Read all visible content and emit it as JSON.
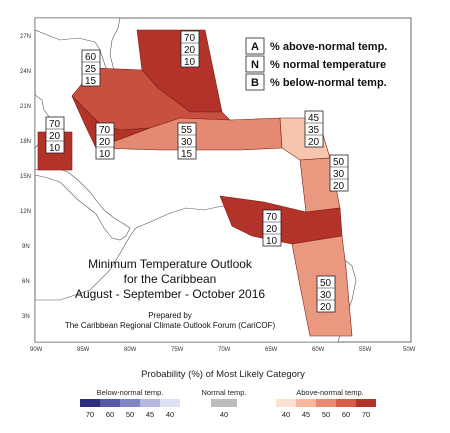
{
  "map": {
    "lat_labels": [
      "27N",
      "24N",
      "21N",
      "18N",
      "15N",
      "12N",
      "9N",
      "6N",
      "3N"
    ],
    "lon_labels": [
      "90W",
      "85W",
      "80W",
      "75W",
      "70W",
      "65W",
      "60W",
      "55W",
      "50W"
    ]
  },
  "key": {
    "rows": [
      {
        "letter": "A",
        "text": "% above-normal temp."
      },
      {
        "letter": "N",
        "text": "% normal temperature"
      },
      {
        "letter": "B",
        "text": "% below-normal temp."
      }
    ]
  },
  "regions": [
    {
      "id": "belize",
      "probs": [
        "70",
        "20",
        "10"
      ]
    },
    {
      "id": "cuba",
      "probs": [
        "60",
        "25",
        "15"
      ]
    },
    {
      "id": "bahamas",
      "probs": [
        "70",
        "20",
        "10"
      ]
    },
    {
      "id": "jamaica",
      "probs": [
        "70",
        "20",
        "10"
      ]
    },
    {
      "id": "hispaniola",
      "probs": [
        "55",
        "30",
        "15"
      ]
    },
    {
      "id": "leeward",
      "probs": [
        "45",
        "35",
        "20"
      ]
    },
    {
      "id": "windward",
      "probs": [
        "50",
        "30",
        "20"
      ]
    },
    {
      "id": "abc-islands",
      "probs": [
        "70",
        "20",
        "10"
      ]
    },
    {
      "id": "guianas",
      "probs": [
        "50",
        "30",
        "20"
      ]
    }
  ],
  "title": {
    "line1": "Minimum Temperature Outlook",
    "line2": "for the Caribbean",
    "line3": "August - September - October 2016"
  },
  "credit": {
    "line1": "Prepared by",
    "line2": "The Caribbean Regional Climate Outlook Forum (CariCOF)"
  },
  "colorbar": {
    "caption": "Probability (%) of Most Likely Category",
    "below": {
      "label": "Below-normal temp.",
      "ticks": [
        "70",
        "60",
        "50",
        "45",
        "40"
      ],
      "colors": [
        "#2b2f7e",
        "#5559a6",
        "#8088c4",
        "#b3b9df",
        "#dde2f3"
      ]
    },
    "normal": {
      "label": "Normal temp.",
      "ticks": [
        "40"
      ],
      "colors": [
        "#bcbcbc"
      ]
    },
    "above": {
      "label": "Above-normal temp.",
      "ticks": [
        "40",
        "45",
        "50",
        "60",
        "70"
      ],
      "colors": [
        "#fde2d3",
        "#f6b79a",
        "#e88a70",
        "#d65c48",
        "#b3322a"
      ]
    }
  },
  "colors": {
    "above_70": "#b3322a",
    "above_60": "#cc5a4a",
    "above_55": "#e07e68",
    "above_50": "#ea9880",
    "above_45": "#f7c4ae",
    "land": "#ffffff",
    "sea": "#ffffff"
  }
}
